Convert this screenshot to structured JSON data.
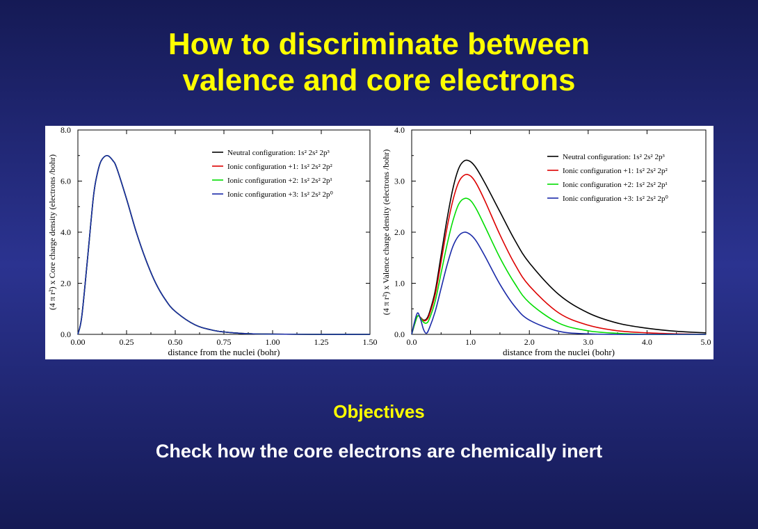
{
  "slide": {
    "title_line1": "How to discriminate between",
    "title_line2": "valence and core electrons",
    "objectives_heading": "Objectives",
    "objectives_text": "Check how the core electrons are chemically inert"
  },
  "chart_data": [
    {
      "type": "line",
      "xlabel": "distance from the nuclei (bohr)",
      "ylabel": "(4 π r²) x Core charge density (electrons /bohr)",
      "xlim": [
        0,
        1.5
      ],
      "ylim": [
        0,
        8
      ],
      "xticks": [
        "0.00",
        "0.25",
        "0.50",
        "0.75",
        "1.00",
        "1.25",
        "1.50"
      ],
      "yticks": [
        "0.0",
        "2.0",
        "4.0",
        "6.0",
        "8.0"
      ],
      "legend_position": "top-right",
      "x": [
        0,
        0.02,
        0.05,
        0.08,
        0.1,
        0.12,
        0.15,
        0.18,
        0.2,
        0.25,
        0.3,
        0.35,
        0.4,
        0.45,
        0.5,
        0.6,
        0.7,
        0.8,
        0.9,
        1.0,
        1.2,
        1.5
      ],
      "series": [
        {
          "name": "Neutral configuration: 1s² 2s² 2p³",
          "color": "#000000",
          "values": [
            0,
            0.7,
            3.0,
            5.4,
            6.3,
            6.8,
            7.0,
            6.8,
            6.5,
            5.3,
            4.0,
            2.9,
            2.0,
            1.35,
            0.9,
            0.38,
            0.15,
            0.06,
            0.02,
            0.01,
            0.0,
            0.0
          ]
        },
        {
          "name": "Ionic configuration +1: 1s² 2s² 2p²",
          "color": "#dd0000",
          "values": [
            0,
            0.7,
            3.0,
            5.4,
            6.3,
            6.8,
            7.0,
            6.8,
            6.5,
            5.3,
            4.0,
            2.9,
            2.0,
            1.35,
            0.9,
            0.38,
            0.15,
            0.06,
            0.02,
            0.01,
            0.0,
            0.0
          ]
        },
        {
          "name": "Ionic configuration +2: 1s² 2s² 2p¹",
          "color": "#00dd00",
          "values": [
            0,
            0.7,
            3.0,
            5.4,
            6.3,
            6.8,
            7.0,
            6.8,
            6.5,
            5.3,
            4.0,
            2.9,
            2.0,
            1.35,
            0.9,
            0.38,
            0.15,
            0.06,
            0.02,
            0.01,
            0.0,
            0.0
          ]
        },
        {
          "name": "Ionic configuration +3: 1s² 2s² 2p⁰",
          "color": "#1a2aa8",
          "values": [
            0,
            0.7,
            3.0,
            5.4,
            6.3,
            6.8,
            7.0,
            6.8,
            6.5,
            5.3,
            4.0,
            2.9,
            2.0,
            1.35,
            0.9,
            0.38,
            0.15,
            0.06,
            0.02,
            0.01,
            0.0,
            0.0
          ]
        }
      ]
    },
    {
      "type": "line",
      "xlabel": "distance from the nuclei (bohr)",
      "ylabel": "(4 π r²) x Valence charge density (electrons /bohr)",
      "xlim": [
        0,
        5
      ],
      "ylim": [
        0,
        4
      ],
      "xticks": [
        "0.0",
        "1.0",
        "2.0",
        "3.0",
        "4.0",
        "5.0"
      ],
      "yticks": [
        "0.0",
        "1.0",
        "2.0",
        "3.0",
        "4.0"
      ],
      "legend_position": "top-right",
      "x": [
        0,
        0.05,
        0.1,
        0.15,
        0.2,
        0.25,
        0.3,
        0.4,
        0.5,
        0.6,
        0.7,
        0.8,
        0.9,
        1.0,
        1.1,
        1.25,
        1.5,
        1.75,
        2.0,
        2.5,
        3.0,
        3.5,
        4.0,
        4.5,
        5.0
      ],
      "series": [
        {
          "name": "Neutral configuration: 1s² 2s² 2p³",
          "color": "#000000",
          "values": [
            0,
            0.2,
            0.36,
            0.33,
            0.28,
            0.3,
            0.42,
            0.85,
            1.55,
            2.25,
            2.85,
            3.25,
            3.4,
            3.38,
            3.25,
            2.95,
            2.4,
            1.85,
            1.4,
            0.78,
            0.42,
            0.22,
            0.12,
            0.06,
            0.03
          ]
        },
        {
          "name": "Ionic configuration +1: 1s² 2s² 2p²",
          "color": "#dd0000",
          "values": [
            0,
            0.2,
            0.36,
            0.33,
            0.27,
            0.28,
            0.38,
            0.78,
            1.42,
            2.08,
            2.62,
            2.98,
            3.12,
            3.1,
            2.95,
            2.6,
            1.95,
            1.38,
            0.95,
            0.42,
            0.18,
            0.07,
            0.03,
            0.01,
            0.0
          ]
        },
        {
          "name": "Ionic configuration +2: 1s² 2s² 2p¹",
          "color": "#00dd00",
          "values": [
            0,
            0.2,
            0.36,
            0.32,
            0.24,
            0.22,
            0.3,
            0.65,
            1.2,
            1.75,
            2.22,
            2.55,
            2.66,
            2.62,
            2.45,
            2.1,
            1.5,
            1.0,
            0.62,
            0.22,
            0.07,
            0.02,
            0.0,
            0.0,
            0.0
          ]
        },
        {
          "name": "Ionic configuration +3: 1s² 2s² 2p⁰",
          "color": "#1a2aa8",
          "values": [
            0,
            0.25,
            0.42,
            0.3,
            0.1,
            0.02,
            0.12,
            0.45,
            0.9,
            1.35,
            1.72,
            1.93,
            2.0,
            1.95,
            1.82,
            1.52,
            0.98,
            0.55,
            0.28,
            0.06,
            0.01,
            0.0,
            0.0,
            0.0,
            0.0
          ]
        }
      ]
    }
  ]
}
